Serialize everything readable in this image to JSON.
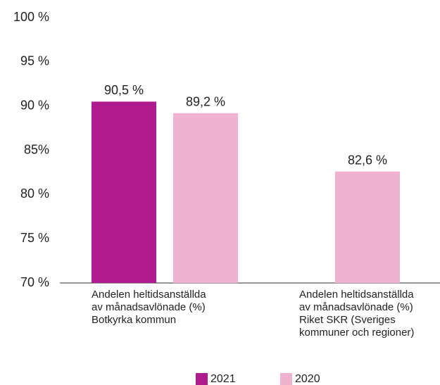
{
  "chart_data": {
    "type": "bar",
    "categories": [
      "Andelen heltidsanställda\nav månadsavlönade (%)\nBotkyrka kommun",
      "Andelen heltidsanställda\nav månadsavlönade (%)\nRiket SKR (Sveriges\nkommuner och regioner)"
    ],
    "series": [
      {
        "name": "2021",
        "color": "#b01c8e",
        "values": [
          90.5,
          null
        ],
        "value_labels": [
          "90,5 %",
          null
        ]
      },
      {
        "name": "2020",
        "color": "#f0b3cf",
        "values": [
          89.2,
          82.6
        ],
        "value_labels": [
          "89,2 %",
          "82,6 %"
        ]
      }
    ],
    "ylim": [
      70,
      100
    ],
    "yticks": [
      {
        "value": 70,
        "label": "70 %"
      },
      {
        "value": 75,
        "label": "75 %"
      },
      {
        "value": 80,
        "label": "80 %"
      },
      {
        "value": 85,
        "label": "85%"
      },
      {
        "value": 90,
        "label": "90 %"
      },
      {
        "value": 95,
        "label": "95 %"
      },
      {
        "value": 100,
        "label": "100 %"
      }
    ],
    "legend": "bottom"
  }
}
